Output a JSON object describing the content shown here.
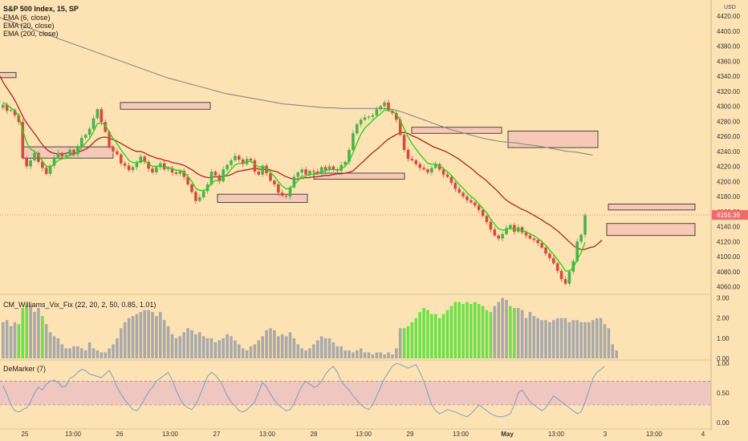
{
  "chart_data": {
    "type": "candlestick",
    "symbol_title": "S&P 500 Index, 15, SP",
    "currency": "USD",
    "indicators": [
      "EMA (6, close)",
      "EMA (20, close)",
      "EMA (200, close)"
    ],
    "price_axis": {
      "ticks": [
        4420,
        4400,
        4380,
        4360,
        4340,
        4320,
        4300,
        4280,
        4260,
        4240,
        4220,
        4200,
        4180,
        4160,
        4140,
        4120,
        4100,
        4080,
        4060
      ],
      "ylim": [
        4052,
        4436
      ]
    },
    "last_price_label": "4155.39",
    "time_axis": {
      "labels": [
        "25",
        "13:00",
        "26",
        "13:00",
        "27",
        "13:00",
        "28",
        "13:00",
        "29",
        "13:00",
        "May",
        "13:00",
        "3",
        "13:00",
        "4"
      ],
      "bold": [
        "May"
      ]
    },
    "close_series": [
      4302,
      4294,
      4295,
      4288,
      4279,
      4231,
      4220,
      4228,
      4238,
      4226,
      4218,
      4210,
      4221,
      4232,
      4238,
      4233,
      4235,
      4242,
      4236,
      4247,
      4258,
      4262,
      4270,
      4284,
      4296,
      4279,
      4266,
      4246,
      4240,
      4236,
      4224,
      4221,
      4215,
      4219,
      4225,
      4233,
      4226,
      4217,
      4212,
      4219,
      4224,
      4216,
      4218,
      4212,
      4210,
      4214,
      4206,
      4196,
      4186,
      4174,
      4179,
      4187,
      4196,
      4213,
      4208,
      4200,
      4216,
      4222,
      4228,
      4234,
      4229,
      4223,
      4230,
      4228,
      4213,
      4209,
      4221,
      4211,
      4201,
      4196,
      4185,
      4181,
      4180,
      4192,
      4206,
      4212,
      4216,
      4209,
      4214,
      4213,
      4211,
      4219,
      4215,
      4220,
      4216,
      4214,
      4222,
      4226,
      4242,
      4264,
      4276,
      4282,
      4285,
      4286,
      4288,
      4296,
      4300,
      4305,
      4294,
      4291,
      4282,
      4262,
      4242,
      4230,
      4228,
      4223,
      4218,
      4216,
      4212,
      4218,
      4223,
      4216,
      4209,
      4206,
      4198,
      4190,
      4185,
      4180,
      4175,
      4172,
      4168,
      4162,
      4154,
      4146,
      4136,
      4128,
      4124,
      4130,
      4138,
      4142,
      4133,
      4139,
      4132,
      4128,
      4124,
      4122,
      4118,
      4112,
      4104,
      4098,
      4091,
      4081,
      4070,
      4064,
      4080,
      4094,
      4120,
      4129,
      4155
    ],
    "ema6": [
      4305,
      4302,
      4298,
      4294,
      4287,
      4268,
      4252,
      4243,
      4240,
      4235,
      4227,
      4220,
      4219,
      4223,
      4228,
      4230,
      4231,
      4235,
      4235,
      4239,
      4245,
      4251,
      4257,
      4266,
      4277,
      4278,
      4275,
      4265,
      4257,
      4250,
      4242,
      4235,
      4228,
      4225,
      4225,
      4227,
      4227,
      4224,
      4220,
      4220,
      4221,
      4219,
      4219,
      4217,
      4215,
      4215,
      4212,
      4207,
      4200,
      4191,
      4188,
      4188,
      4190,
      4198,
      4201,
      4201,
      4205,
      4210,
      4216,
      4222,
      4224,
      4224,
      4226,
      4227,
      4223,
      4219,
      4220,
      4217,
      4212,
      4207,
      4200,
      4194,
      4190,
      4191,
      4195,
      4201,
      4207,
      4207,
      4209,
      4210,
      4210,
      4213,
      4214,
      4216,
      4216,
      4215,
      4217,
      4220,
      4227,
      4238,
      4251,
      4263,
      4271,
      4276,
      4281,
      4286,
      4290,
      4295,
      4295,
      4293,
      4290,
      4281,
      4270,
      4259,
      4250,
      4243,
      4236,
      4230,
      4224,
      4223,
      4223,
      4221,
      4217,
      4213,
      4208,
      4202,
      4196,
      4191,
      4185,
      4180,
      4176,
      4170,
      4164,
      4158,
      4150,
      4143,
      4137,
      4135,
      4136,
      4138,
      4136,
      4137,
      4135,
      4133,
      4130,
      4128,
      4124,
      4120,
      4115,
      4109,
      4103,
      4096,
      4089,
      4081,
      4081,
      4085,
      4096,
      4105,
      4119
    ],
    "ema20": [
      4340,
      4330,
      4322,
      4314,
      4305,
      4294,
      4283,
      4275,
      4268,
      4261,
      4253,
      4246,
      4241,
      4238,
      4237,
      4237,
      4237,
      4238,
      4237,
      4238,
      4240,
      4242,
      4245,
      4250,
      4255,
      4258,
      4259,
      4258,
      4256,
      4254,
      4251,
      4248,
      4245,
      4242,
      4240,
      4240,
      4238,
      4235,
      4233,
      4231,
      4230,
      4228,
      4227,
      4225,
      4224,
      4223,
      4221,
      4218,
      4215,
      4211,
      4208,
      4206,
      4205,
      4206,
      4206,
      4206,
      4207,
      4208,
      4210,
      4213,
      4214,
      4215,
      4216,
      4217,
      4217,
      4216,
      4216,
      4216,
      4214,
      4213,
      4210,
      4207,
      4205,
      4203,
      4203,
      4204,
      4205,
      4205,
      4206,
      4206,
      4207,
      4208,
      4208,
      4209,
      4210,
      4210,
      4211,
      4212,
      4214,
      4219,
      4224,
      4229,
      4234,
      4239,
      4243,
      4248,
      4253,
      4257,
      4260,
      4263,
      4265,
      4265,
      4263,
      4260,
      4258,
      4255,
      4252,
      4249,
      4246,
      4244,
      4242,
      4240,
      4237,
      4234,
      4231,
      4227,
      4223,
      4219,
      4215,
      4210,
      4206,
      4202,
      4197,
      4192,
      4187,
      4181,
      4176,
      4172,
      4169,
      4166,
      4163,
      4161,
      4158,
      4155,
      4152,
      4149,
      4145,
      4142,
      4138,
      4134,
      4129,
      4124,
      4119,
      4114,
      4111,
      4109,
      4110,
      4112,
      4113,
      4117,
      4122
    ],
    "ema200": [
      4418,
      4414,
      4410,
      4406,
      4402,
      4398,
      4394,
      4390,
      4386,
      4382,
      4378,
      4374,
      4370,
      4366,
      4362,
      4358,
      4354,
      4350,
      4346,
      4342,
      4338,
      4335,
      4332,
      4329,
      4326,
      4323,
      4320,
      4317,
      4315,
      4313,
      4311,
      4309,
      4307,
      4305,
      4303,
      4302,
      4301,
      4300,
      4299,
      4298,
      4298,
      4297,
      4297,
      4297,
      4297,
      4297,
      4297,
      4296,
      4293,
      4289,
      4285,
      4281,
      4277,
      4273,
      4269,
      4266,
      4263,
      4260,
      4257,
      4255,
      4253,
      4252,
      4251,
      4249,
      4248,
      4246,
      4244,
      4242,
      4240,
      4239,
      4237,
      4235
    ],
    "zones": [
      {
        "high": 4345,
        "low": 4338
      },
      {
        "high": 4305,
        "low": 4296
      },
      {
        "high": 4246,
        "low": 4231
      },
      {
        "high": 4272,
        "low": 4264
      },
      {
        "high": 4183,
        "low": 4172
      },
      {
        "high": 4211,
        "low": 4203
      },
      {
        "high": 4267,
        "low": 4245
      },
      {
        "high": 4144,
        "low": 4128
      },
      {
        "high": 4170,
        "low": 4162
      }
    ],
    "vix_fix": {
      "title": "CM_Williams_Vix_Fix (22, 20, 2, 50, 0.85, 1.01)",
      "ylim": [
        0,
        3.1
      ],
      "ticks": [
        "3.00",
        "2.00",
        "1.00",
        "0.00"
      ],
      "values": [
        1.8,
        1.9,
        1.6,
        1.8,
        1.7,
        2.5,
        2.6,
        2.6,
        2.3,
        2.5,
        2.1,
        1.7,
        1.3,
        1.1,
        1.0,
        0.7,
        0.5,
        0.5,
        0.6,
        0.6,
        0.5,
        0.4,
        0.8,
        0.5,
        0.4,
        0.3,
        0.3,
        0.5,
        0.7,
        1.0,
        1.5,
        1.8,
        2.0,
        2.1,
        2.2,
        2.3,
        2.4,
        2.4,
        2.3,
        2.1,
        2.3,
        1.9,
        1.6,
        1.2,
        1.0,
        1.1,
        1.3,
        1.5,
        1.4,
        1.2,
        1.3,
        1.1,
        1.0,
        1.0,
        0.8,
        0.9,
        1.0,
        1.2,
        1.1,
        0.9,
        0.7,
        0.5,
        0.4,
        0.6,
        0.7,
        0.9,
        1.1,
        1.4,
        1.5,
        1.4,
        1.1,
        1.2,
        1.1,
        1.3,
        1.0,
        0.7,
        0.5,
        0.4,
        0.5,
        0.7,
        0.9,
        1.1,
        1.0,
        1.0,
        0.8,
        0.6,
        0.6,
        0.4,
        0.4,
        0.3,
        0.4,
        0.5,
        0.3,
        0.3,
        0.2,
        0.3,
        0.3,
        0.2,
        0.3,
        0.2,
        0.5,
        1.5,
        1.5,
        1.6,
        1.8,
        2.0,
        2.3,
        2.5,
        2.4,
        2.2,
        2.2,
        2.0,
        2.2,
        2.4,
        2.6,
        2.8,
        2.8,
        2.7,
        2.8,
        2.7,
        2.8,
        2.7,
        2.6,
        2.4,
        2.3,
        2.6,
        2.8,
        3.0,
        2.9,
        2.6,
        2.5,
        2.5,
        2.4,
        2.0,
        2.3,
        2.1,
        2.0,
        1.9,
        1.9,
        1.8,
        1.9,
        2.0,
        2.0,
        2.0,
        1.8,
        1.9,
        1.9,
        1.8,
        1.8,
        1.8,
        1.9,
        2.0,
        2.0,
        1.7,
        1.5,
        0.7,
        0.4
      ],
      "highlighted_ranges": [
        [
          4,
          6
        ],
        [
          10,
          10
        ],
        [
          102,
          124
        ],
        [
          129,
          130
        ]
      ],
      "colors": {
        "normal": "#a9a9a9",
        "highlight": "#6ee049"
      }
    },
    "demarker": {
      "title": "DeMarker (7)",
      "ylim": [
        -0.08,
        1.03
      ],
      "ticks": [
        "1.00",
        "0.50",
        "0.00"
      ],
      "band": [
        0.3,
        0.7
      ],
      "values": [
        0.62,
        0.48,
        0.3,
        0.2,
        0.18,
        0.22,
        0.25,
        0.35,
        0.5,
        0.6,
        0.55,
        0.65,
        0.7,
        0.72,
        0.68,
        0.6,
        0.62,
        0.75,
        0.78,
        0.85,
        0.9,
        0.88,
        0.82,
        0.8,
        0.78,
        0.76,
        0.82,
        0.88,
        0.76,
        0.6,
        0.48,
        0.38,
        0.3,
        0.22,
        0.2,
        0.28,
        0.4,
        0.52,
        0.6,
        0.7,
        0.75,
        0.8,
        0.85,
        0.72,
        0.55,
        0.4,
        0.3,
        0.25,
        0.22,
        0.3,
        0.45,
        0.62,
        0.78,
        0.85,
        0.8,
        0.72,
        0.6,
        0.45,
        0.35,
        0.28,
        0.2,
        0.18,
        0.22,
        0.28,
        0.35,
        0.52,
        0.68,
        0.6,
        0.48,
        0.38,
        0.3,
        0.25,
        0.2,
        0.22,
        0.32,
        0.48,
        0.62,
        0.7,
        0.65,
        0.6,
        0.62,
        0.7,
        0.82,
        0.9,
        0.95,
        0.85,
        0.7,
        0.62,
        0.55,
        0.45,
        0.38,
        0.3,
        0.25,
        0.22,
        0.3,
        0.45,
        0.6,
        0.75,
        0.85,
        0.95,
        1.0,
        0.98,
        0.95,
        0.92,
        0.95,
        0.98,
        0.85,
        0.7,
        0.5,
        0.3,
        0.2,
        0.15,
        0.18,
        0.22,
        0.2,
        0.18,
        0.15,
        0.12,
        0.1,
        0.15,
        0.22,
        0.3,
        0.25,
        0.2,
        0.15,
        0.12,
        0.1,
        0.1,
        0.12,
        0.15,
        0.3,
        0.5,
        0.55,
        0.45,
        0.35,
        0.3,
        0.25,
        0.2,
        0.25,
        0.35,
        0.45,
        0.4,
        0.35,
        0.3,
        0.25,
        0.2,
        0.15,
        0.18,
        0.35,
        0.55,
        0.75,
        0.85,
        0.9,
        0.95
      ],
      "colors": {
        "line": "#7aa0c4",
        "band": "#efc6c0"
      }
    }
  },
  "colors": {
    "background": "#fde3b4",
    "bull": "#4caf50",
    "bear": "#d84a3c",
    "ema6": "#2ed11f",
    "ema20": "#a8261e",
    "ema200": "#888888",
    "zone_fill": "#f5c9b5",
    "price_label_bg": "#f26b6b"
  }
}
